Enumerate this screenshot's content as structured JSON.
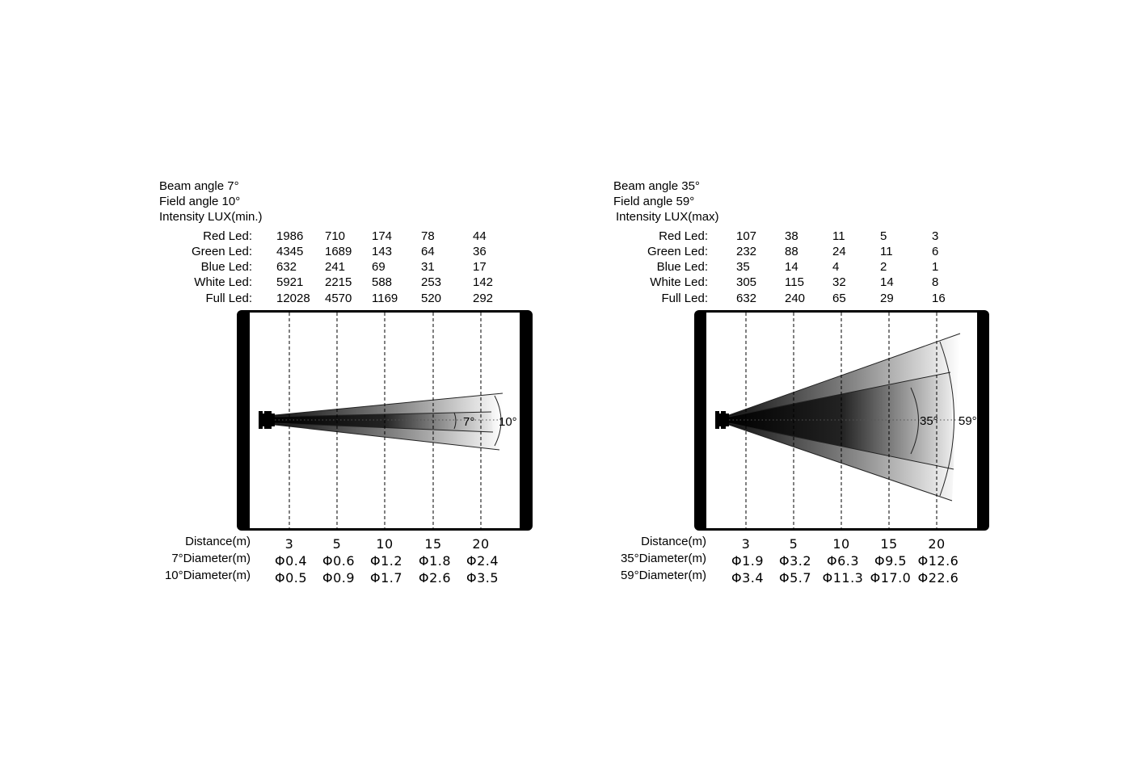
{
  "panels": [
    {
      "header": [
        "Beam angle 7°",
        "Field angle 10°",
        "Intensity LUX(min.)"
      ],
      "rows": [
        {
          "label": "Red Led:",
          "values": [
            "1986",
            "710",
            "174",
            "78",
            "44"
          ]
        },
        {
          "label": "Green Led:",
          "values": [
            "4345",
            "1689",
            "143",
            "64",
            "36"
          ]
        },
        {
          "label": "Blue Led:",
          "values": [
            "632",
            "241",
            "69",
            "31",
            "17"
          ]
        },
        {
          "label": "White Led:",
          "values": [
            "5921",
            "2215",
            "588",
            "253",
            "142"
          ]
        },
        {
          "label": "Full Led:",
          "values": [
            "12028",
            "4570",
            "1169",
            "520",
            "292"
          ]
        }
      ],
      "beam_label": "7°",
      "field_label": "10°",
      "distance_label": "Distance(m)",
      "distances": [
        "3",
        "5",
        "10",
        "15",
        "20"
      ],
      "diam1_label": "7°Diameter(m)",
      "diam1": [
        "Φ0.4",
        "Φ0.6",
        "Φ1.2",
        "Φ1.8",
        "Φ2.4"
      ],
      "diam2_label": "10°Diameter(m)",
      "diam2": [
        "Φ0.5",
        "Φ0.9",
        "Φ1.7",
        "Φ2.6",
        "Φ3.5"
      ]
    },
    {
      "header": [
        "Beam angle 35°",
        "Field angle 59°",
        "Intensity LUX(max)"
      ],
      "rows": [
        {
          "label": "Red Led:",
          "values": [
            "107",
            "38",
            "11",
            "5",
            "3"
          ]
        },
        {
          "label": "Green Led:",
          "values": [
            "232",
            "88",
            "24",
            "11",
            "6"
          ]
        },
        {
          "label": "Blue Led:",
          "values": [
            "35",
            "14",
            "4",
            "2",
            "1"
          ]
        },
        {
          "label": "White Led:",
          "values": [
            "305",
            "115",
            "32",
            "14",
            "8"
          ]
        },
        {
          "label": "Full Led:",
          "values": [
            "632",
            "240",
            "65",
            "29",
            "16"
          ]
        }
      ],
      "beam_label": "35°",
      "field_label": "59°",
      "distance_label": "Distance(m)",
      "distances": [
        "3",
        "5",
        "10",
        "15",
        "20"
      ],
      "diam1_label": "35°Diameter(m)",
      "diam1": [
        "Φ1.9",
        "Φ3.2",
        "Φ6.3",
        "Φ9.5",
        "Φ12.6"
      ],
      "diam2_label": "59°Diameter(m)",
      "diam2": [
        "Φ3.4",
        "Φ5.7",
        "Φ11.3",
        "Φ17.0",
        "Φ22.6"
      ]
    }
  ]
}
